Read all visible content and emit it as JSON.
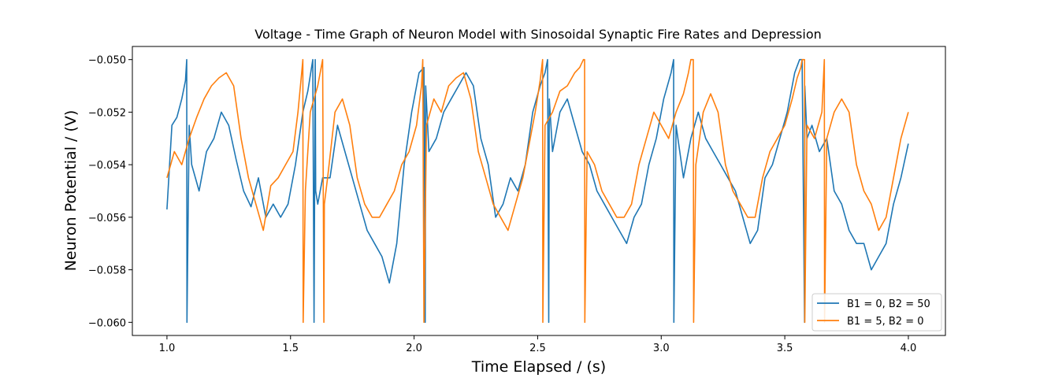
{
  "chart_data": {
    "type": "line",
    "title": "Voltage - Time Graph of Neuron Model with Sinosoidal Synaptic Fire Rates and Depression",
    "xlabel": "Time Elapsed / (s)",
    "ylabel": "Neuron Potential / (V)",
    "xlim": [
      0.86,
      4.15
    ],
    "ylim": [
      -0.0605,
      -0.0495
    ],
    "xticks": [
      1.0,
      1.5,
      2.0,
      2.5,
      3.0,
      3.5,
      4.0
    ],
    "xtick_labels": [
      "1.0",
      "1.5",
      "2.0",
      "2.5",
      "3.0",
      "3.5",
      "4.0"
    ],
    "yticks": [
      -0.06,
      -0.058,
      -0.056,
      -0.054,
      -0.052,
      -0.05
    ],
    "ytick_labels": [
      "−0.060",
      "−0.058",
      "−0.056",
      "−0.054",
      "−0.052",
      "−0.050"
    ],
    "grid": false,
    "legend_position": "lower-right",
    "series": [
      {
        "name": "B1 = 0, B2 = 50",
        "color": "#1f77b4",
        "x": [
          1.0,
          1.02,
          1.04,
          1.06,
          1.075,
          1.08,
          1.081,
          1.09,
          1.1,
          1.13,
          1.16,
          1.19,
          1.22,
          1.25,
          1.28,
          1.31,
          1.34,
          1.37,
          1.4,
          1.43,
          1.46,
          1.49,
          1.52,
          1.55,
          1.57,
          1.59,
          1.595,
          1.6,
          1.602,
          1.61,
          1.63,
          1.66,
          1.69,
          1.72,
          1.75,
          1.78,
          1.81,
          1.84,
          1.87,
          1.9,
          1.93,
          1.96,
          1.99,
          2.02,
          2.04,
          2.045,
          2.047,
          2.06,
          2.09,
          2.12,
          2.15,
          2.18,
          2.21,
          2.24,
          2.27,
          2.3,
          2.33,
          2.36,
          2.39,
          2.42,
          2.45,
          2.48,
          2.51,
          2.53,
          2.54,
          2.545,
          2.547,
          2.56,
          2.59,
          2.62,
          2.65,
          2.68,
          2.71,
          2.74,
          2.77,
          2.8,
          2.83,
          2.86,
          2.89,
          2.92,
          2.95,
          2.98,
          3.01,
          3.04,
          3.05,
          3.051,
          3.06,
          3.09,
          3.12,
          3.15,
          3.18,
          3.21,
          3.24,
          3.27,
          3.3,
          3.33,
          3.36,
          3.39,
          3.42,
          3.45,
          3.48,
          3.51,
          3.54,
          3.56,
          3.57,
          3.58,
          3.581,
          3.59,
          3.61,
          3.64,
          3.67,
          3.7,
          3.73,
          3.76,
          3.79,
          3.82,
          3.85,
          3.88,
          3.91,
          3.94,
          3.97,
          4.0
        ],
        "values": [
          -0.0557,
          -0.0525,
          -0.0522,
          -0.0515,
          -0.0508,
          -0.05,
          -0.06,
          -0.0525,
          -0.054,
          -0.055,
          -0.0535,
          -0.053,
          -0.052,
          -0.0525,
          -0.0538,
          -0.055,
          -0.0556,
          -0.0545,
          -0.056,
          -0.0555,
          -0.056,
          -0.0555,
          -0.054,
          -0.052,
          -0.0512,
          -0.05,
          -0.06,
          -0.05,
          -0.055,
          -0.0555,
          -0.0545,
          -0.0545,
          -0.0525,
          -0.0535,
          -0.0545,
          -0.0555,
          -0.0565,
          -0.057,
          -0.0575,
          -0.0585,
          -0.057,
          -0.054,
          -0.052,
          -0.0505,
          -0.0503,
          -0.06,
          -0.051,
          -0.0535,
          -0.053,
          -0.052,
          -0.0515,
          -0.051,
          -0.0505,
          -0.051,
          -0.053,
          -0.054,
          -0.056,
          -0.0555,
          -0.0545,
          -0.055,
          -0.054,
          -0.052,
          -0.051,
          -0.0505,
          -0.05,
          -0.06,
          -0.0515,
          -0.0535,
          -0.052,
          -0.0515,
          -0.0525,
          -0.0535,
          -0.054,
          -0.055,
          -0.0555,
          -0.056,
          -0.0565,
          -0.057,
          -0.056,
          -0.0555,
          -0.054,
          -0.053,
          -0.0515,
          -0.0505,
          -0.05,
          -0.06,
          -0.0525,
          -0.0545,
          -0.053,
          -0.052,
          -0.053,
          -0.0535,
          -0.054,
          -0.0545,
          -0.055,
          -0.056,
          -0.057,
          -0.0565,
          -0.0545,
          -0.054,
          -0.053,
          -0.052,
          -0.0505,
          -0.05,
          -0.05,
          -0.06,
          -0.051,
          -0.053,
          -0.0525,
          -0.0535,
          -0.053,
          -0.055,
          -0.0555,
          -0.0565,
          -0.057,
          -0.057,
          -0.058,
          -0.0575,
          -0.057,
          -0.0555,
          -0.0545,
          -0.0532
        ]
      },
      {
        "name": "B1 = 5, B2 = 0",
        "color": "#ff7f0e",
        "x": [
          1.0,
          1.03,
          1.06,
          1.09,
          1.12,
          1.15,
          1.18,
          1.21,
          1.24,
          1.27,
          1.3,
          1.33,
          1.36,
          1.39,
          1.42,
          1.45,
          1.48,
          1.51,
          1.53,
          1.545,
          1.55,
          1.551,
          1.56,
          1.58,
          1.61,
          1.62,
          1.63,
          1.635,
          1.637,
          1.65,
          1.68,
          1.71,
          1.74,
          1.77,
          1.8,
          1.83,
          1.86,
          1.89,
          1.92,
          1.95,
          1.98,
          2.01,
          2.03,
          2.035,
          2.04,
          2.05,
          2.08,
          2.11,
          2.14,
          2.17,
          2.2,
          2.23,
          2.26,
          2.29,
          2.32,
          2.35,
          2.38,
          2.41,
          2.44,
          2.47,
          2.49,
          2.51,
          2.52,
          2.521,
          2.53,
          2.56,
          2.59,
          2.62,
          2.65,
          2.67,
          2.685,
          2.69,
          2.691,
          2.7,
          2.73,
          2.76,
          2.79,
          2.82,
          2.85,
          2.88,
          2.91,
          2.94,
          2.97,
          3.0,
          3.03,
          3.06,
          3.09,
          3.11,
          3.12,
          3.13,
          3.131,
          3.14,
          3.17,
          3.2,
          3.23,
          3.26,
          3.29,
          3.32,
          3.35,
          3.38,
          3.41,
          3.44,
          3.47,
          3.5,
          3.53,
          3.55,
          3.565,
          3.57,
          3.58,
          3.581,
          3.59,
          3.62,
          3.65,
          3.66,
          3.661,
          3.67,
          3.7,
          3.73,
          3.76,
          3.79,
          3.82,
          3.85,
          3.88,
          3.91,
          3.94,
          3.97,
          4.0
        ],
        "values": [
          -0.0545,
          -0.0535,
          -0.054,
          -0.053,
          -0.0522,
          -0.0515,
          -0.051,
          -0.0507,
          -0.0505,
          -0.051,
          -0.053,
          -0.0545,
          -0.0555,
          -0.0565,
          -0.0548,
          -0.0545,
          -0.054,
          -0.0535,
          -0.052,
          -0.0505,
          -0.05,
          -0.06,
          -0.055,
          -0.052,
          -0.051,
          -0.0505,
          -0.05,
          -0.06,
          -0.0555,
          -0.0545,
          -0.052,
          -0.0515,
          -0.0525,
          -0.0545,
          -0.0555,
          -0.056,
          -0.056,
          -0.0555,
          -0.055,
          -0.054,
          -0.0535,
          -0.0525,
          -0.051,
          -0.05,
          -0.06,
          -0.0525,
          -0.0515,
          -0.052,
          -0.051,
          -0.0507,
          -0.0505,
          -0.0515,
          -0.0535,
          -0.0545,
          -0.0555,
          -0.056,
          -0.0565,
          -0.0555,
          -0.0545,
          -0.053,
          -0.052,
          -0.0508,
          -0.05,
          -0.06,
          -0.0525,
          -0.052,
          -0.0512,
          -0.051,
          -0.0505,
          -0.0503,
          -0.05,
          -0.05,
          -0.06,
          -0.0535,
          -0.054,
          -0.055,
          -0.0555,
          -0.056,
          -0.056,
          -0.0555,
          -0.054,
          -0.053,
          -0.052,
          -0.0525,
          -0.053,
          -0.052,
          -0.0513,
          -0.0505,
          -0.05,
          -0.05,
          -0.06,
          -0.054,
          -0.052,
          -0.0513,
          -0.052,
          -0.054,
          -0.055,
          -0.0555,
          -0.056,
          -0.056,
          -0.0545,
          -0.0535,
          -0.053,
          -0.0525,
          -0.0515,
          -0.0507,
          -0.0503,
          -0.05,
          -0.05,
          -0.06,
          -0.0525,
          -0.053,
          -0.052,
          -0.05,
          -0.06,
          -0.053,
          -0.052,
          -0.0515,
          -0.052,
          -0.054,
          -0.055,
          -0.0555,
          -0.0565,
          -0.056,
          -0.0545,
          -0.053,
          -0.052
        ]
      }
    ]
  }
}
